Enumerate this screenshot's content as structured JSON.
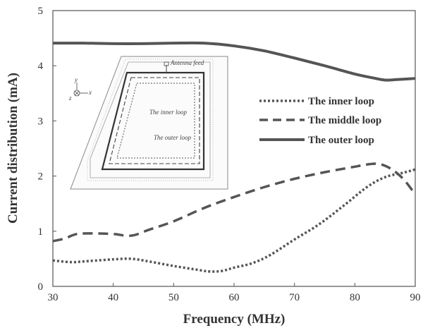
{
  "chart_data": {
    "type": "line",
    "title": "",
    "xlabel": "Frequency (MHz)",
    "ylabel": "Current distribution (mA)",
    "xlim": [
      30,
      90
    ],
    "ylim": [
      0,
      5
    ],
    "xticks": [
      "30",
      "40",
      "50",
      "60",
      "70",
      "80",
      "90"
    ],
    "yticks": [
      "0",
      "1",
      "2",
      "3",
      "4",
      "5"
    ],
    "grid": false,
    "legend_position": "center-right",
    "series": [
      {
        "name": "The inner loop",
        "style": "dotted",
        "color": "#555555",
        "x": [
          30,
          33,
          36,
          40,
          43,
          46,
          50,
          54,
          56,
          58,
          60,
          63,
          66,
          70,
          74,
          78,
          82,
          85,
          88,
          90
        ],
        "y": [
          0.47,
          0.44,
          0.46,
          0.49,
          0.5,
          0.45,
          0.37,
          0.3,
          0.27,
          0.28,
          0.34,
          0.42,
          0.57,
          0.85,
          1.12,
          1.45,
          1.8,
          1.98,
          2.06,
          2.12
        ]
      },
      {
        "name": "The middle loop",
        "style": "dashed",
        "color": "#555555",
        "x": [
          30,
          32,
          34,
          37,
          40,
          43,
          46,
          50,
          55,
          60,
          65,
          70,
          75,
          80,
          82,
          84,
          86,
          88,
          90
        ],
        "y": [
          0.82,
          0.87,
          0.95,
          0.96,
          0.95,
          0.92,
          1.03,
          1.18,
          1.42,
          1.62,
          1.8,
          1.95,
          2.07,
          2.17,
          2.21,
          2.22,
          2.13,
          1.95,
          1.67
        ]
      },
      {
        "name": "The outer loop",
        "style": "solid",
        "color": "#555555",
        "x": [
          30,
          35,
          40,
          45,
          50,
          55,
          60,
          65,
          70,
          75,
          80,
          83,
          85,
          87,
          90
        ],
        "y": [
          4.41,
          4.41,
          4.4,
          4.4,
          4.41,
          4.41,
          4.36,
          4.27,
          4.14,
          4.0,
          3.85,
          3.78,
          3.74,
          3.75,
          3.77
        ]
      }
    ],
    "inset": {
      "labels": {
        "feed": "Antenna feed",
        "inner": "The inner loop",
        "outer": "The outer loop"
      },
      "axis_labels": {
        "x": "x",
        "y": "y",
        "z": "z"
      }
    }
  }
}
